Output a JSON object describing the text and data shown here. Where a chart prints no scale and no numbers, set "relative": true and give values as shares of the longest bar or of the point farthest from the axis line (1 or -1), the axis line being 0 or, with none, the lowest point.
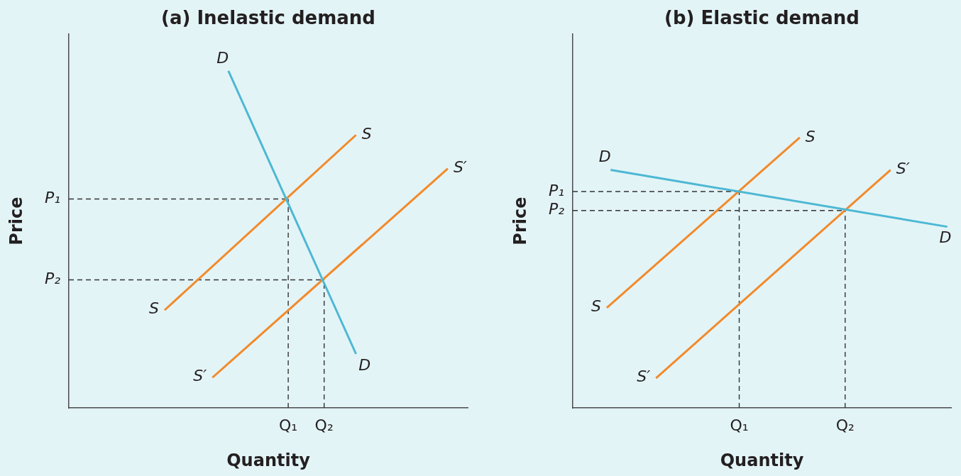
{
  "chart_data": [
    {
      "type": "line",
      "title": "(a) Inelastic demand",
      "xlabel": "Quantity",
      "ylabel": "Price",
      "relative": true,
      "categories": [
        null,
        null,
        null,
        null,
        null,
        null,
        null,
        null,
        null,
        null,
        null,
        null,
        null,
        null,
        null,
        null,
        null,
        null,
        null,
        null,
        null,
        null,
        null,
        null,
        null,
        null,
        null,
        null,
        null,
        null,
        null,
        null,
        null,
        null,
        null,
        null,
        null,
        null,
        null,
        null,
        null,
        null,
        null,
        null,
        null,
        null,
        null,
        null,
        null,
        null,
        null,
        null,
        null,
        null,
        null,
        "Q₁",
        null,
        null,
        null,
        null,
        null,
        null,
        null,
        null,
        "Q₂",
        null,
        null,
        null,
        null,
        null,
        null,
        null,
        null,
        null,
        null,
        null,
        null,
        null,
        null,
        null,
        null,
        null,
        null,
        null,
        null,
        null,
        null,
        null,
        null,
        null,
        null,
        null,
        null,
        null,
        null,
        null,
        null,
        null,
        null,
        null,
        null
      ],
      "series": [
        {
          "name": "D",
          "color": "#4db8d3",
          "values": [
            null,
            null,
            null,
            null,
            null,
            null,
            null,
            null,
            null,
            null,
            null,
            null,
            null,
            null,
            null,
            null,
            null,
            null,
            null,
            null,
            null,
            null,
            null,
            null,
            null,
            null,
            null,
            null,
            null,
            null,
            null,
            null,
            null,
            null,
            null,
            null,
            null,
            null,
            null,
            null,
            1,
            null,
            null,
            null,
            null,
            null,
            null,
            null,
            null,
            null,
            null,
            null,
            null,
            null,
            null,
            null,
            null,
            null,
            null,
            null,
            null,
            null,
            null,
            null,
            null,
            null,
            null,
            null,
            null,
            null,
            null,
            null,
            0.16,
            null,
            null,
            null,
            null,
            null,
            null,
            null,
            null,
            null,
            null,
            null,
            null,
            null,
            null,
            null,
            null,
            null,
            null,
            null,
            null,
            null,
            null,
            null,
            null,
            null,
            null,
            null,
            null
          ]
        },
        {
          "name": "S",
          "color": "#f28a2a",
          "values": [
            null,
            null,
            null,
            null,
            null,
            null,
            null,
            null,
            null,
            null,
            null,
            null,
            null,
            null,
            null,
            null,
            null,
            null,
            null,
            null,
            null,
            null,
            null,
            null,
            0.29,
            null,
            null,
            null,
            null,
            null,
            null,
            null,
            null,
            null,
            null,
            null,
            null,
            null,
            null,
            null,
            null,
            null,
            null,
            null,
            null,
            null,
            null,
            null,
            null,
            null,
            null,
            null,
            null,
            null,
            null,
            null,
            null,
            null,
            null,
            null,
            null,
            null,
            null,
            null,
            null,
            null,
            null,
            null,
            null,
            null,
            null,
            null,
            0.81,
            null,
            null,
            null,
            null,
            null,
            null,
            null,
            null,
            null,
            null,
            null,
            null,
            null,
            null,
            null,
            null,
            null,
            null,
            null,
            null,
            null,
            null,
            null,
            null,
            null,
            null,
            null,
            null
          ]
        },
        {
          "name": "S′",
          "color": "#f28a2a",
          "values": [
            null,
            null,
            null,
            null,
            null,
            null,
            null,
            null,
            null,
            null,
            null,
            null,
            null,
            null,
            null,
            null,
            null,
            null,
            null,
            null,
            null,
            null,
            null,
            null,
            null,
            null,
            null,
            null,
            null,
            null,
            null,
            null,
            null,
            null,
            null,
            null,
            0.09,
            null,
            null,
            null,
            null,
            null,
            null,
            null,
            null,
            null,
            null,
            null,
            null,
            null,
            null,
            null,
            null,
            null,
            null,
            null,
            null,
            null,
            null,
            null,
            null,
            null,
            null,
            null,
            null,
            null,
            null,
            null,
            null,
            null,
            null,
            null,
            null,
            null,
            null,
            null,
            null,
            null,
            null,
            null,
            null,
            null,
            null,
            null,
            null,
            null,
            null,
            null,
            null,
            null,
            null,
            null,
            null,
            null,
            null,
            0.71,
            null,
            null,
            null,
            null,
            null
          ]
        }
      ],
      "ref_lines": [
        {
          "axis": "y",
          "value": 0.62,
          "label": "P₁",
          "color": "#333333",
          "line_style": "dashed"
        },
        {
          "axis": "y",
          "value": 0.38,
          "label": "P₂",
          "color": "#333333",
          "line_style": "dashed"
        },
        {
          "axis": "x",
          "value": "Q₁",
          "color": "#333333",
          "line_style": "dashed"
        },
        {
          "axis": "x",
          "value": "Q₂",
          "color": "#333333",
          "line_style": "dashed"
        }
      ]
    },
    {
      "type": "line",
      "title": "(b) Elastic demand",
      "xlabel": "Quantity",
      "ylabel": "Price",
      "relative": true,
      "categories": [
        null,
        null,
        null,
        null,
        null,
        null,
        null,
        null,
        null,
        null,
        null,
        null,
        null,
        null,
        null,
        null,
        null,
        null,
        null,
        null,
        null,
        null,
        null,
        null,
        null,
        null,
        null,
        null,
        null,
        null,
        null,
        null,
        null,
        null,
        null,
        null,
        null,
        null,
        null,
        null,
        null,
        null,
        null,
        null,
        "Q₁",
        null,
        null,
        null,
        null,
        null,
        null,
        null,
        null,
        null,
        null,
        null,
        null,
        null,
        null,
        null,
        null,
        null,
        null,
        null,
        null,
        null,
        null,
        null,
        null,
        null,
        null,
        null,
        "Q₂",
        null,
        null,
        null,
        null,
        null,
        null,
        null,
        null,
        null,
        null,
        null,
        null,
        null,
        null,
        null,
        null,
        null,
        null,
        null,
        null,
        null,
        null,
        null,
        null,
        null,
        null,
        null,
        null
      ],
      "series": [
        {
          "name": "D",
          "color": "#4db8d3",
          "values": [
            null,
            null,
            null,
            null,
            null,
            null,
            null,
            null,
            null,
            null,
            0.88,
            null,
            null,
            null,
            null,
            null,
            null,
            null,
            null,
            null,
            null,
            null,
            null,
            null,
            null,
            null,
            null,
            null,
            null,
            null,
            null,
            null,
            null,
            null,
            null,
            null,
            null,
            null,
            null,
            null,
            null,
            null,
            null,
            null,
            null,
            null,
            null,
            null,
            null,
            null,
            null,
            null,
            null,
            null,
            null,
            null,
            null,
            null,
            null,
            null,
            null,
            null,
            null,
            null,
            null,
            null,
            null,
            null,
            null,
            null,
            null,
            null,
            null,
            null,
            null,
            null,
            null,
            null,
            null,
            null,
            null,
            null,
            null,
            null,
            null,
            null,
            null,
            null,
            null,
            null,
            null,
            null,
            null,
            null,
            null,
            null,
            null,
            null,
            null,
            0.67,
            null
          ]
        },
        {
          "name": "S",
          "color": "#f28a2a",
          "values": [
            null,
            null,
            null,
            null,
            null,
            null,
            null,
            null,
            null,
            0.37,
            null,
            null,
            null,
            null,
            null,
            null,
            null,
            null,
            null,
            null,
            null,
            null,
            null,
            null,
            null,
            null,
            null,
            null,
            null,
            null,
            null,
            null,
            null,
            null,
            null,
            null,
            null,
            null,
            null,
            null,
            null,
            null,
            null,
            null,
            null,
            null,
            null,
            null,
            null,
            null,
            null,
            null,
            null,
            null,
            null,
            null,
            null,
            null,
            null,
            null,
            1,
            null,
            null,
            null,
            null,
            null,
            null,
            null,
            null,
            null,
            null,
            null,
            null,
            null,
            null,
            null,
            null,
            null,
            null,
            null,
            null,
            null,
            null,
            null,
            null,
            null,
            null,
            null,
            null,
            null,
            null,
            null,
            null,
            null,
            null,
            null,
            null,
            null,
            null,
            null,
            null
          ]
        },
        {
          "name": "S′",
          "color": "#f28a2a",
          "values": [
            null,
            null,
            null,
            null,
            null,
            null,
            null,
            null,
            null,
            null,
            null,
            null,
            null,
            null,
            null,
            null,
            null,
            null,
            null,
            null,
            null,
            null,
            0.11,
            null,
            null,
            null,
            null,
            null,
            null,
            null,
            null,
            null,
            null,
            null,
            null,
            null,
            null,
            null,
            null,
            null,
            null,
            null,
            null,
            null,
            null,
            null,
            null,
            null,
            null,
            null,
            null,
            null,
            null,
            null,
            null,
            null,
            null,
            null,
            null,
            null,
            null,
            null,
            null,
            null,
            null,
            null,
            null,
            null,
            null,
            null,
            null,
            null,
            null,
            null,
            null,
            null,
            null,
            null,
            null,
            null,
            null,
            null,
            null,
            null,
            0.88,
            null,
            null,
            null,
            null,
            null,
            null,
            null,
            null,
            null,
            null,
            null,
            null,
            null,
            null,
            null,
            null
          ]
        }
      ],
      "ref_lines": [
        {
          "axis": "y",
          "value": 0.8,
          "label": "P₁",
          "color": "#333333",
          "line_style": "dashed"
        },
        {
          "axis": "y",
          "value": 0.73,
          "label": "P₂",
          "color": "#333333",
          "line_style": "dashed"
        },
        {
          "axis": "x",
          "value": "Q₁",
          "color": "#333333",
          "line_style": "dashed"
        },
        {
          "axis": "x",
          "value": "Q₂",
          "color": "#333333",
          "line_style": "dashed"
        }
      ]
    }
  ]
}
